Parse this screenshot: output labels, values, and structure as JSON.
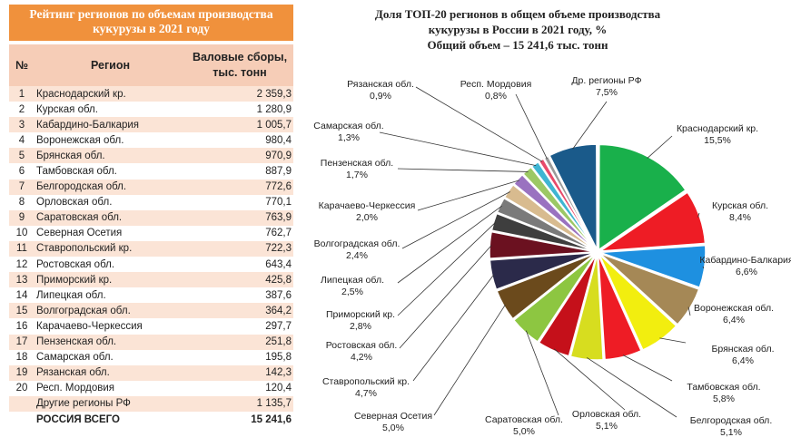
{
  "table": {
    "title_line1": "Рейтинг регионов по объемам производства",
    "title_line2": "кукурузы в 2021 году",
    "header_num": "№",
    "header_region": "Регион",
    "header_value_line1": "Валовые сборы,",
    "header_value_line2": "тыс. тонн",
    "rows": [
      {
        "num": "1",
        "region": "Краснодарский кр.",
        "value": "2 359,3"
      },
      {
        "num": "2",
        "region": "Курская обл.",
        "value": "1 280,9"
      },
      {
        "num": "3",
        "region": "Кабардино-Балкария",
        "value": "1 005,7"
      },
      {
        "num": "4",
        "region": "Воронежская обл.",
        "value": "980,4"
      },
      {
        "num": "5",
        "region": "Брянская обл.",
        "value": "970,9"
      },
      {
        "num": "6",
        "region": "Тамбовская обл.",
        "value": "887,9"
      },
      {
        "num": "7",
        "region": "Белгородская обл.",
        "value": "772,6"
      },
      {
        "num": "8",
        "region": "Орловская обл.",
        "value": "770,1"
      },
      {
        "num": "9",
        "region": "Саратовская обл.",
        "value": "763,9"
      },
      {
        "num": "10",
        "region": "Северная Осетия",
        "value": "762,7"
      },
      {
        "num": "11",
        "region": "Ставропольский кр.",
        "value": "722,3"
      },
      {
        "num": "12",
        "region": "Ростовская обл.",
        "value": "643,4"
      },
      {
        "num": "13",
        "region": "Приморский кр.",
        "value": "425,8"
      },
      {
        "num": "14",
        "region": "Липецкая обл.",
        "value": "387,6"
      },
      {
        "num": "15",
        "region": "Волгоградская обл.",
        "value": "364,2"
      },
      {
        "num": "16",
        "region": "Карачаево-Черкессия",
        "value": "297,7"
      },
      {
        "num": "17",
        "region": "Пензенская обл.",
        "value": "251,8"
      },
      {
        "num": "18",
        "region": "Самарская обл.",
        "value": "195,8"
      },
      {
        "num": "19",
        "region": "Рязанская обл.",
        "value": "142,3"
      },
      {
        "num": "20",
        "region": "Респ. Мордовия",
        "value": "120,4"
      },
      {
        "num": "",
        "region": "Другие регионы РФ",
        "value": "1 135,7"
      },
      {
        "num": "",
        "region": "РОССИЯ ВСЕГО",
        "value": "15 241,6"
      }
    ]
  },
  "chart_data": {
    "type": "pie",
    "title_line1": "Доля ТОП-20 регионов в общем объеме производства",
    "title_line2": "кукурузы в России в 2021 году, %",
    "title_line3": "Общий объем – 15 241,6 тыс. тонн",
    "slices": [
      {
        "label": "Краснодарский кр.",
        "value_label": "15,5%",
        "value": 15.5,
        "color": "#19b04b"
      },
      {
        "label": "Курская обл.",
        "value_label": "8,4%",
        "value": 8.4,
        "color": "#ee1c25"
      },
      {
        "label": "Кабардино-Балкария",
        "value_label": "6,6%",
        "value": 6.6,
        "color": "#1e90e0"
      },
      {
        "label": "Воронежская обл.",
        "value_label": "6,4%",
        "value": 6.4,
        "color": "#a58856"
      },
      {
        "label": "Брянская обл.",
        "value_label": "6,4%",
        "value": 6.4,
        "color": "#f2ee0f"
      },
      {
        "label": "Тамбовская обл.",
        "value_label": "5,8%",
        "value": 5.8,
        "color": "#ee1c25"
      },
      {
        "label": "Белгородская обл.",
        "value_label": "5,1%",
        "value": 5.1,
        "color": "#d7dd1f"
      },
      {
        "label": "Орловская обл.",
        "value_label": "5,1%",
        "value": 5.1,
        "color": "#c5101a"
      },
      {
        "label": "Саратовская обл.",
        "value_label": "5,0%",
        "value": 5.0,
        "color": "#8dc641"
      },
      {
        "label": "Северная Осетия",
        "value_label": "5,0%",
        "value": 5.0,
        "color": "#6b4a1c"
      },
      {
        "label": "Ставропольский кр.",
        "value_label": "4,7%",
        "value": 4.7,
        "color": "#2b2a4a"
      },
      {
        "label": "Ростовская обл.",
        "value_label": "4,2%",
        "value": 4.2,
        "color": "#6b1120"
      },
      {
        "label": "Приморский кр.",
        "value_label": "2,8%",
        "value": 2.8,
        "color": "#3e3e3e"
      },
      {
        "label": "Липецкая обл.",
        "value_label": "2,5%",
        "value": 2.5,
        "color": "#7a7a7a"
      },
      {
        "label": "Волгоградская обл.",
        "value_label": "2,4%",
        "value": 2.4,
        "color": "#d8bb8f"
      },
      {
        "label": "Карачаево-Черкессия",
        "value_label": "2,0%",
        "value": 2.0,
        "color": "#9a72c0"
      },
      {
        "label": "Пензенская обл.",
        "value_label": "1,7%",
        "value": 1.7,
        "color": "#9cc865"
      },
      {
        "label": "Самарская обл.",
        "value_label": "1,3%",
        "value": 1.3,
        "color": "#3fb5d2"
      },
      {
        "label": "Рязанская обл.",
        "value_label": "0,9%",
        "value": 0.9,
        "color": "#e84a6a"
      },
      {
        "label": "Респ. Мордовия",
        "value_label": "0,8%",
        "value": 0.8,
        "color": "#9a9a9a"
      },
      {
        "label": "Др. регионы РФ",
        "value_label": "7,5%",
        "value": 7.5,
        "color": "#1a5a8a"
      }
    ]
  }
}
